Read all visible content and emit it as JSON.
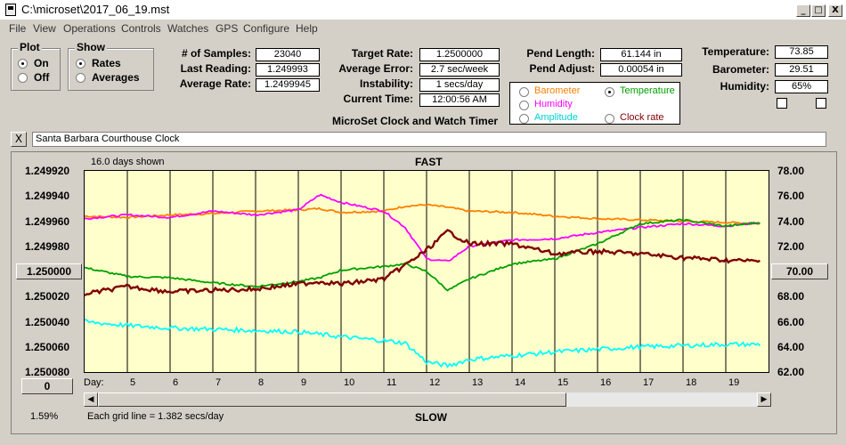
{
  "window": {
    "title": "C:\\microset\\2017_06_19.mst",
    "min": "_",
    "max": "□",
    "close": "X"
  },
  "menu": [
    "File",
    "View",
    "Operations",
    "Controls",
    "Watches",
    "GPS",
    "Configure",
    "Help"
  ],
  "plot_group": {
    "label": "Plot",
    "on": "On",
    "off": "Off",
    "selected": "On"
  },
  "show_group": {
    "label": "Show",
    "rates": "Rates",
    "averages": "Averages",
    "selected": "Rates"
  },
  "stats": {
    "samples_label": "# of Samples:",
    "samples": "23040",
    "last_label": "Last Reading:",
    "last": "1.249993",
    "avg_label": "Average Rate:",
    "avg": "1.2499945"
  },
  "rates": {
    "target_label": "Target Rate:",
    "target": "1.2500000",
    "error_label": "Average Error:",
    "error": "2.7 sec/week",
    "instab_label": "Instability:",
    "instab": "1 secs/day",
    "time_label": "Current Time:",
    "time": "12:00:56 AM",
    "caption": "MicroSet Clock and Watch Timer"
  },
  "pend": {
    "length_label": "Pend Length:",
    "length": "61.144 in",
    "adjust_label": "Pend Adjust:",
    "adjust": "0.00054 in"
  },
  "env": {
    "temp_label": "Temperature:",
    "temp": "73.85",
    "baro_label": "Barometer:",
    "baro": "29.51",
    "hum_label": "Humidity:",
    "hum": "65%"
  },
  "overlay": {
    "barometer": "Barometer",
    "temperature": "Temperature",
    "humidity": "Humidity",
    "amplitude": "Amplitude",
    "clockrate": "Clock rate",
    "selected": "Temperature"
  },
  "clock_name": "Santa Barbara Courthouse Clock",
  "clear_button": "X",
  "graph": {
    "days_shown": "16.0 days shown",
    "fast": "FAST",
    "slow": "SLOW",
    "day_label": "Day:",
    "grid_note": "Each grid line = 1.382 secs/day",
    "left_value": "1.59%",
    "zero_button": "0",
    "center_rate_button": "1.250000",
    "center_temp_button": "70.00"
  },
  "colors": {
    "barometer": "#ff8000",
    "temperature": "#00a000",
    "humidity": "#ff00ff",
    "amplitude": "#00ffff",
    "rate": "#800000",
    "plot_bg": "#ffffcc"
  },
  "chart_data": {
    "type": "line",
    "y_left_ticks": [
      "1.249920",
      "1.249940",
      "1.249960",
      "1.249980",
      "1.250000",
      "1.250020",
      "1.250040",
      "1.250060",
      "1.250080"
    ],
    "y_right_ticks": [
      "78.00",
      "76.00",
      "74.00",
      "72.00",
      "70.00",
      "68.00",
      "66.00",
      "64.00",
      "62.00"
    ],
    "x_ticks": [
      "5",
      "6",
      "7",
      "8",
      "9",
      "10",
      "11",
      "12",
      "13",
      "14",
      "15",
      "16",
      "17",
      "18",
      "19"
    ],
    "x": [
      4,
      5,
      6,
      7,
      8,
      9,
      9.5,
      10,
      11,
      11.5,
      12,
      12.5,
      13,
      14,
      15,
      16,
      17,
      18,
      19,
      19.8
    ],
    "series": [
      {
        "name": "Barometer",
        "color": "#ff8000",
        "values": [
          74.4,
          74.3,
          74.5,
          74.6,
          74.8,
          74.9,
          75.0,
          74.7,
          74.8,
          75.2,
          75.3,
          75.1,
          74.8,
          74.7,
          74.4,
          74.2,
          74.1,
          74.0,
          73.9,
          73.8
        ]
      },
      {
        "name": "Humidity",
        "color": "#ff00ff",
        "values": [
          74.2,
          74.5,
          74.3,
          74.8,
          74.5,
          74.9,
          76.1,
          75.5,
          74.8,
          73.5,
          71.0,
          70.8,
          72.0,
          72.5,
          72.6,
          73.1,
          73.5,
          73.8,
          73.6,
          73.9
        ]
      },
      {
        "name": "Temperature",
        "color": "#00a000",
        "values": [
          70.3,
          69.6,
          69.5,
          69.1,
          68.8,
          69.2,
          69.5,
          70.1,
          70.4,
          70.6,
          70.0,
          68.5,
          69.4,
          70.6,
          71.0,
          72.2,
          73.8,
          74.1,
          73.6,
          73.9
        ]
      },
      {
        "name": "Clock rate",
        "color": "#800000",
        "values": [
          1.250018,
          1.250012,
          1.250016,
          1.250015,
          1.250014,
          1.25001,
          1.250008,
          1.25001,
          1.250006,
          1.249995,
          1.249983,
          1.249968,
          1.249978,
          1.249978,
          1.249986,
          1.249984,
          1.249986,
          1.249989,
          1.249991,
          1.249992
        ]
      },
      {
        "name": "Amplitude",
        "color": "#00ffff",
        "values": [
          66.0,
          65.7,
          65.5,
          65.4,
          65.3,
          65.2,
          65.0,
          64.8,
          64.5,
          64.3,
          62.8,
          62.5,
          63.0,
          63.3,
          63.6,
          63.8,
          64.0,
          64.1,
          64.2,
          64.2
        ]
      }
    ]
  }
}
